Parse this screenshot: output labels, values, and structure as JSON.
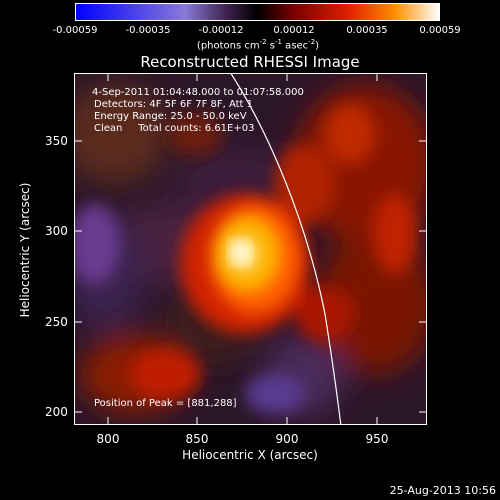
{
  "colorbar": {
    "ticks": [
      "-0.00059",
      "-0.00035",
      "-0.00012",
      "0.00012",
      "0.00035",
      "0.00059"
    ],
    "unit_prefix": "(photons cm",
    "unit_exp1": "-2",
    "unit_mid": " s",
    "unit_exp2": "-1",
    "unit_mid2": " asec",
    "unit_exp3": "-2",
    "unit_suffix": ")"
  },
  "title": "Reconstructed RHESSI Image",
  "annotations": {
    "time_range": "4-Sep-2011 01:04:48.000 to 01:07:58.000",
    "detectors": "Detectors: 4F 5F 6F 7F 8F, Att 1",
    "energy": "Energy Range: 25.0 - 50.0 keV",
    "clean": "Clean     Total counts: 6.61E+03",
    "peak": "Position of Peak = [881,288]"
  },
  "axes": {
    "xlabel": "Heliocentric X (arcsec)",
    "ylabel": "Heliocentric Y (arcsec)",
    "xticks": [
      "800",
      "850",
      "900",
      "950"
    ],
    "yticks": [
      "350",
      "300",
      "250",
      "200"
    ]
  },
  "timestamp": "25-Aug-2013 10:56"
}
